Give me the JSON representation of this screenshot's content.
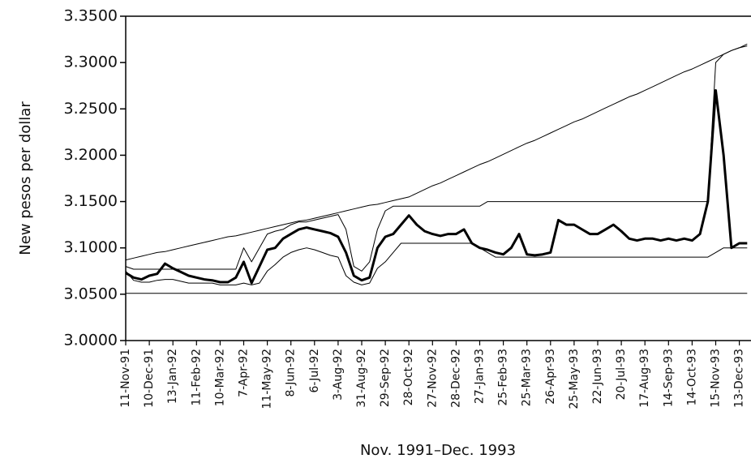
{
  "chart_data": {
    "type": "line",
    "y_label": "New pesos per dollar",
    "x_label": "Nov. 1991–Dec. 1993",
    "categories": [
      "11-Nov-91",
      null,
      null,
      "10-Dec-91",
      null,
      null,
      "13-Jan-92",
      null,
      null,
      "11-Feb-92",
      null,
      null,
      "10-Mar-92",
      null,
      null,
      "7-Apr-92",
      null,
      null,
      "11-May-92",
      null,
      null,
      "8-Jun-92",
      null,
      null,
      "6-Jul-92",
      null,
      null,
      "3-Aug-92",
      null,
      null,
      "31-Aug-92",
      null,
      null,
      "29-Sep-92",
      null,
      null,
      "28-Oct-92",
      null,
      null,
      "27-Nov-92",
      null,
      null,
      "28-Dec-92",
      null,
      null,
      "27-Jan-93",
      null,
      null,
      "25-Feb-93",
      null,
      null,
      "25-Mar-93",
      null,
      null,
      "26-Apr-93",
      null,
      null,
      "25-May-93",
      null,
      null,
      "22-Jun-93",
      null,
      null,
      "20-Jul-93",
      null,
      null,
      "17-Aug-93",
      null,
      null,
      "14-Sep-93",
      null,
      null,
      "14-Oct-93",
      null,
      null,
      "15-Nov-93",
      null,
      null,
      "13-Dec-93",
      null
    ],
    "ylim": [
      3.0,
      3.35
    ],
    "yticks": [
      {
        "value": 3.0,
        "label": "3.0000"
      },
      {
        "value": 3.05,
        "label": "3.0500"
      },
      {
        "value": 3.1,
        "label": "3.1000"
      },
      {
        "value": 3.15,
        "label": "3.1500"
      },
      {
        "value": 3.2,
        "label": "3.2000"
      },
      {
        "value": 3.25,
        "label": "3.2500"
      },
      {
        "value": 3.3,
        "label": "3.3000"
      },
      {
        "value": 3.35,
        "label": "3.3500"
      }
    ],
    "grid": false,
    "series": [
      {
        "color": "#000000",
        "width": 1,
        "values": [
          3.087,
          3.089,
          3.091,
          3.093,
          3.095,
          3.096,
          3.098,
          3.1,
          3.102,
          3.104,
          3.106,
          3.108,
          3.11,
          3.112,
          3.113,
          3.115,
          3.117,
          3.119,
          3.121,
          3.123,
          3.125,
          3.127,
          3.129,
          3.13,
          3.132,
          3.134,
          3.136,
          3.138,
          3.14,
          3.142,
          3.144,
          3.146,
          3.147,
          3.149,
          3.151,
          3.153,
          3.155,
          3.159,
          3.163,
          3.167,
          3.17,
          3.174,
          3.178,
          3.182,
          3.186,
          3.19,
          3.193,
          3.197,
          3.201,
          3.205,
          3.209,
          3.213,
          3.216,
          3.22,
          3.224,
          3.228,
          3.232,
          3.236,
          3.239,
          3.243,
          3.247,
          3.251,
          3.255,
          3.259,
          3.263,
          3.266,
          3.27,
          3.274,
          3.278,
          3.282,
          3.286,
          3.29,
          3.293,
          3.297,
          3.301,
          3.305,
          3.309,
          3.313,
          3.316,
          3.32
        ]
      },
      {
        "color": "#000000",
        "width": 1,
        "values": [
          3.051,
          3.051,
          3.051,
          3.051,
          3.051,
          3.051,
          3.051,
          3.051,
          3.051,
          3.051,
          3.051,
          3.051,
          3.051,
          3.051,
          3.051,
          3.051,
          3.051,
          3.051,
          3.051,
          3.051,
          3.051,
          3.051,
          3.051,
          3.051,
          3.051,
          3.051,
          3.051,
          3.051,
          3.051,
          3.051,
          3.051,
          3.051,
          3.051,
          3.051,
          3.051,
          3.051,
          3.051,
          3.051,
          3.051,
          3.051,
          3.051,
          3.051,
          3.051,
          3.051,
          3.051,
          3.051,
          3.051,
          3.051,
          3.051,
          3.051,
          3.051,
          3.051,
          3.051,
          3.051,
          3.051,
          3.051,
          3.051,
          3.051,
          3.051,
          3.051,
          3.051,
          3.051,
          3.051,
          3.051,
          3.051,
          3.051,
          3.051,
          3.051,
          3.051,
          3.051,
          3.051,
          3.051,
          3.051,
          3.051,
          3.051,
          3.051,
          3.051,
          3.051,
          3.051,
          3.051
        ]
      },
      {
        "color": "#000000",
        "width": 1,
        "values": [
          3.08,
          3.077,
          3.077,
          3.077,
          3.077,
          3.077,
          3.077,
          3.077,
          3.077,
          3.077,
          3.077,
          3.077,
          3.077,
          3.077,
          3.077,
          3.1,
          3.085,
          3.1,
          3.115,
          3.118,
          3.12,
          3.125,
          3.128,
          3.128,
          3.13,
          3.132,
          3.134,
          3.136,
          3.12,
          3.08,
          3.075,
          3.085,
          3.12,
          3.14,
          3.145,
          3.145,
          3.145,
          3.145,
          3.145,
          3.145,
          3.145,
          3.145,
          3.145,
          3.145,
          3.145,
          3.145,
          3.15,
          3.15,
          3.15,
          3.15,
          3.15,
          3.15,
          3.15,
          3.15,
          3.15,
          3.15,
          3.15,
          3.15,
          3.15,
          3.15,
          3.15,
          3.15,
          3.15,
          3.15,
          3.15,
          3.15,
          3.15,
          3.15,
          3.15,
          3.15,
          3.15,
          3.15,
          3.15,
          3.15,
          3.15,
          3.3,
          3.309,
          3.313,
          3.316,
          3.318
        ]
      },
      {
        "color": "#000000",
        "width": 1,
        "values": [
          3.075,
          3.065,
          3.063,
          3.063,
          3.065,
          3.066,
          3.066,
          3.064,
          3.062,
          3.062,
          3.062,
          3.062,
          3.06,
          3.06,
          3.06,
          3.062,
          3.06,
          3.062,
          3.075,
          3.082,
          3.09,
          3.095,
          3.098,
          3.1,
          3.098,
          3.095,
          3.092,
          3.09,
          3.07,
          3.063,
          3.06,
          3.062,
          3.078,
          3.085,
          3.095,
          3.105,
          3.105,
          3.105,
          3.105,
          3.105,
          3.105,
          3.105,
          3.105,
          3.105,
          3.105,
          3.1,
          3.095,
          3.09,
          3.09,
          3.09,
          3.09,
          3.09,
          3.09,
          3.09,
          3.09,
          3.09,
          3.09,
          3.09,
          3.09,
          3.09,
          3.09,
          3.09,
          3.09,
          3.09,
          3.09,
          3.09,
          3.09,
          3.09,
          3.09,
          3.09,
          3.09,
          3.09,
          3.09,
          3.09,
          3.09,
          3.095,
          3.1,
          3.1,
          3.1,
          3.1
        ]
      },
      {
        "color": "#000000",
        "width": 3,
        "values": [
          3.073,
          3.068,
          3.066,
          3.07,
          3.072,
          3.083,
          3.078,
          3.074,
          3.07,
          3.068,
          3.066,
          3.065,
          3.063,
          3.063,
          3.068,
          3.085,
          3.062,
          3.08,
          3.098,
          3.1,
          3.11,
          3.115,
          3.12,
          3.122,
          3.12,
          3.118,
          3.116,
          3.112,
          3.095,
          3.07,
          3.065,
          3.068,
          3.1,
          3.112,
          3.115,
          3.125,
          3.135,
          3.125,
          3.118,
          3.115,
          3.113,
          3.115,
          3.115,
          3.12,
          3.105,
          3.1,
          3.098,
          3.095,
          3.093,
          3.1,
          3.115,
          3.093,
          3.092,
          3.093,
          3.095,
          3.13,
          3.125,
          3.125,
          3.12,
          3.115,
          3.115,
          3.12,
          3.125,
          3.118,
          3.11,
          3.108,
          3.11,
          3.11,
          3.108,
          3.11,
          3.108,
          3.11,
          3.108,
          3.115,
          3.15,
          3.27,
          3.2,
          3.1,
          3.105,
          3.105
        ]
      }
    ]
  }
}
